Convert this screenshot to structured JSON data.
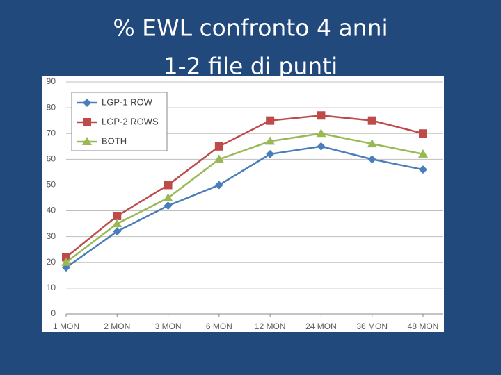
{
  "chart_data": {
    "type": "line",
    "title": [
      "% EWL confronto 4 anni",
      "1-2 file di punti"
    ],
    "categories": [
      "1 MON",
      "2 MON",
      "3 MON",
      "6 MON",
      "12 MON",
      "24 MON",
      "36 MON",
      "48 MON"
    ],
    "series": [
      {
        "name": "LGP-1 ROW",
        "color": "#4a7ebb",
        "marker": "diamond",
        "values": [
          18,
          32,
          42,
          50,
          62,
          65,
          60,
          56
        ]
      },
      {
        "name": "LGP-2 ROWS",
        "color": "#be4b48",
        "marker": "square",
        "values": [
          22,
          38,
          50,
          65,
          75,
          77,
          75,
          70
        ]
      },
      {
        "name": "BOTH",
        "color": "#98b954",
        "marker": "triangle",
        "values": [
          20,
          35,
          45,
          60,
          67,
          70,
          66,
          62
        ]
      }
    ],
    "ylim": [
      0,
      90
    ],
    "yticks": [
      0,
      10,
      20,
      30,
      40,
      50,
      60,
      70,
      80,
      90
    ],
    "grid": true,
    "legend": "top-left"
  }
}
